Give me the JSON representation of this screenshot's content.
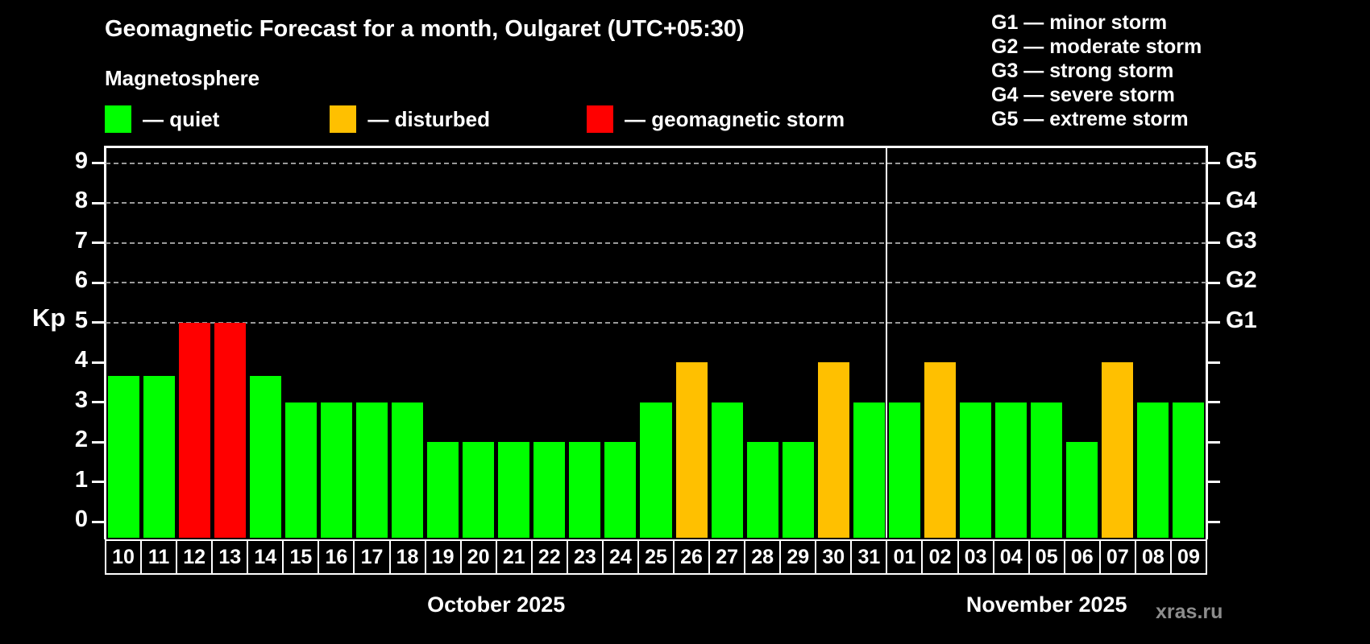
{
  "header": {
    "title": "Geomagnetic Forecast for a month, Oulgaret (UTC+05:30)",
    "subtitle": "Magnetosphere"
  },
  "legend": {
    "items": [
      {
        "key": "quiet",
        "label": "— quiet",
        "color": "#00ff00"
      },
      {
        "key": "disturbed",
        "label": "— disturbed",
        "color": "#ffc000"
      },
      {
        "key": "storm",
        "label": "— geomagnetic storm",
        "color": "#ff0000"
      }
    ]
  },
  "g_legend": {
    "lines": [
      {
        "label": "G1 — minor storm"
      },
      {
        "label": "G2 — moderate storm"
      },
      {
        "label": "G3 — strong storm"
      },
      {
        "label": "G4 — severe storm"
      },
      {
        "label": "G5 — extreme storm"
      }
    ]
  },
  "chart_data": {
    "type": "bar",
    "title": "Geomagnetic Forecast for a month, Oulgaret (UTC+05:30)",
    "ylabel": "Kp",
    "ylim": [
      -0.4,
      9.4
    ],
    "y_ticks": [
      0,
      1,
      2,
      3,
      4,
      5,
      6,
      7,
      8,
      9
    ],
    "gridlines_at": [
      5,
      6,
      7,
      8,
      9
    ],
    "grid": "dashed, only at G-storm levels 5-9",
    "legend_position": "above plot (quiet/disturbed/storm), G-scale top right",
    "right_axis_labels": [
      {
        "kp": 5,
        "label": "G1"
      },
      {
        "kp": 6,
        "label": "G2"
      },
      {
        "kp": 7,
        "label": "G3"
      },
      {
        "kp": 8,
        "label": "G4"
      },
      {
        "kp": 9,
        "label": "G5"
      }
    ],
    "months": [
      {
        "label": "October 2025",
        "days": 22
      },
      {
        "label": "November 2025",
        "days": 9
      }
    ],
    "categories": [
      "10",
      "11",
      "12",
      "13",
      "14",
      "15",
      "16",
      "17",
      "18",
      "19",
      "20",
      "21",
      "22",
      "23",
      "24",
      "25",
      "26",
      "27",
      "28",
      "29",
      "30",
      "31",
      "01",
      "02",
      "03",
      "04",
      "05",
      "06",
      "07",
      "08",
      "09"
    ],
    "values": [
      3.67,
      3.67,
      5,
      5,
      3.67,
      3,
      3,
      3,
      3,
      2,
      2,
      2,
      2,
      2,
      2,
      3,
      4,
      3,
      2,
      2,
      4,
      3,
      3,
      4,
      3,
      3,
      3,
      2,
      4,
      3,
      3
    ],
    "colors": [
      "quiet",
      "quiet",
      "storm",
      "storm",
      "quiet",
      "quiet",
      "quiet",
      "quiet",
      "quiet",
      "quiet",
      "quiet",
      "quiet",
      "quiet",
      "quiet",
      "quiet",
      "quiet",
      "disturbed",
      "quiet",
      "quiet",
      "quiet",
      "disturbed",
      "quiet",
      "quiet",
      "disturbed",
      "quiet",
      "quiet",
      "quiet",
      "quiet",
      "disturbed",
      "quiet",
      "quiet"
    ],
    "palette": {
      "quiet": "#00ff00",
      "disturbed": "#ffc000",
      "storm": "#ff0000"
    }
  },
  "watermark": "xras.ru"
}
